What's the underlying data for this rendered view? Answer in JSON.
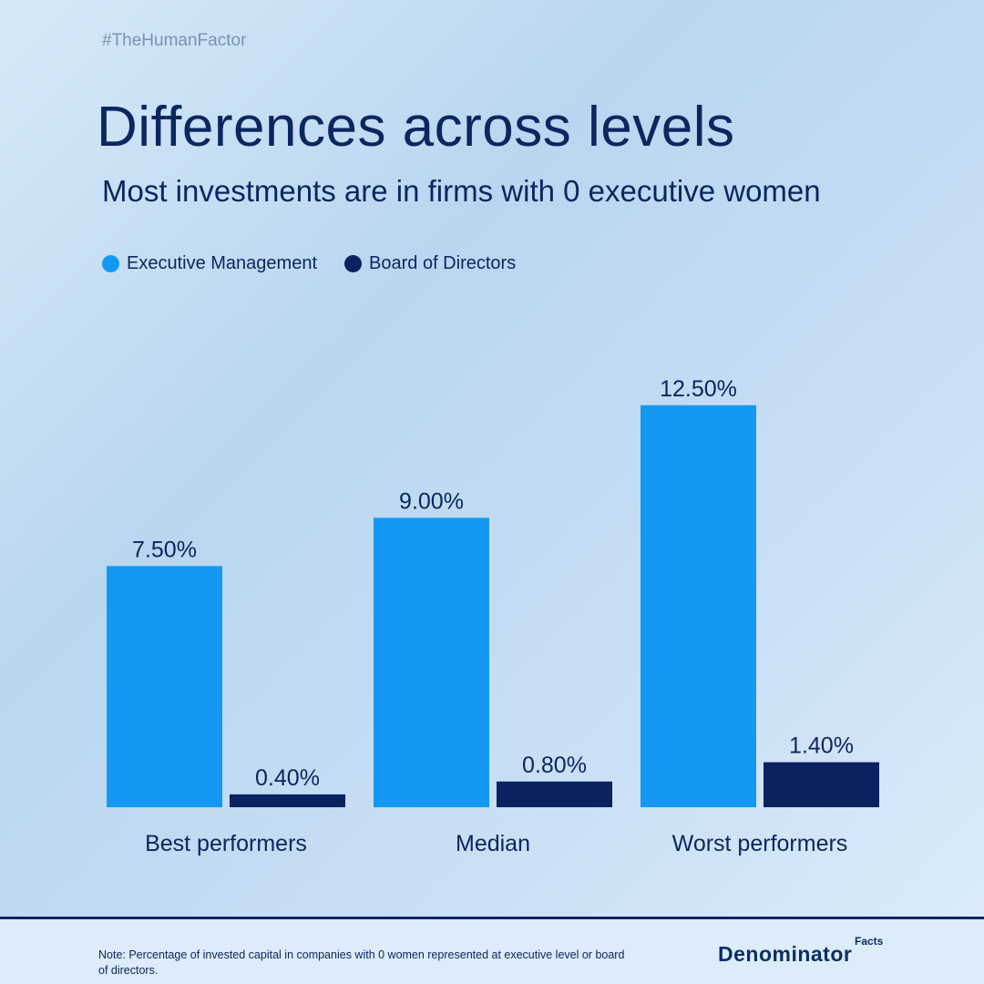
{
  "header": {
    "hashtag": "#TheHumanFactor",
    "title": "Differences across levels",
    "subtitle": "Most investments are in firms with 0 executive women"
  },
  "legend": [
    {
      "label": "Executive Management",
      "color": "#1399f4"
    },
    {
      "label": "Board of Directors",
      "color": "#0a2260"
    }
  ],
  "chart_data": {
    "type": "bar",
    "categories": [
      "Best performers",
      "Median",
      "Worst performers"
    ],
    "series": [
      {
        "name": "Executive Management",
        "values": [
          7.5,
          9.0,
          12.5
        ],
        "labels": [
          "7.50%",
          "9.00%",
          "12.50%"
        ],
        "color": "#1399f4"
      },
      {
        "name": "Board of Directors",
        "values": [
          0.4,
          0.8,
          1.4
        ],
        "labels": [
          "0.40%",
          "0.80%",
          "1.40%"
        ],
        "color": "#0a2260"
      }
    ],
    "ylim": [
      0,
      13
    ],
    "grid": false,
    "legend_position": "top-left"
  },
  "footer": {
    "note": "Note: Percentage of invested capital in companies with 0 women represented at executive level or board of directors.",
    "brand": "Denominator",
    "brand_sup": "Facts"
  }
}
